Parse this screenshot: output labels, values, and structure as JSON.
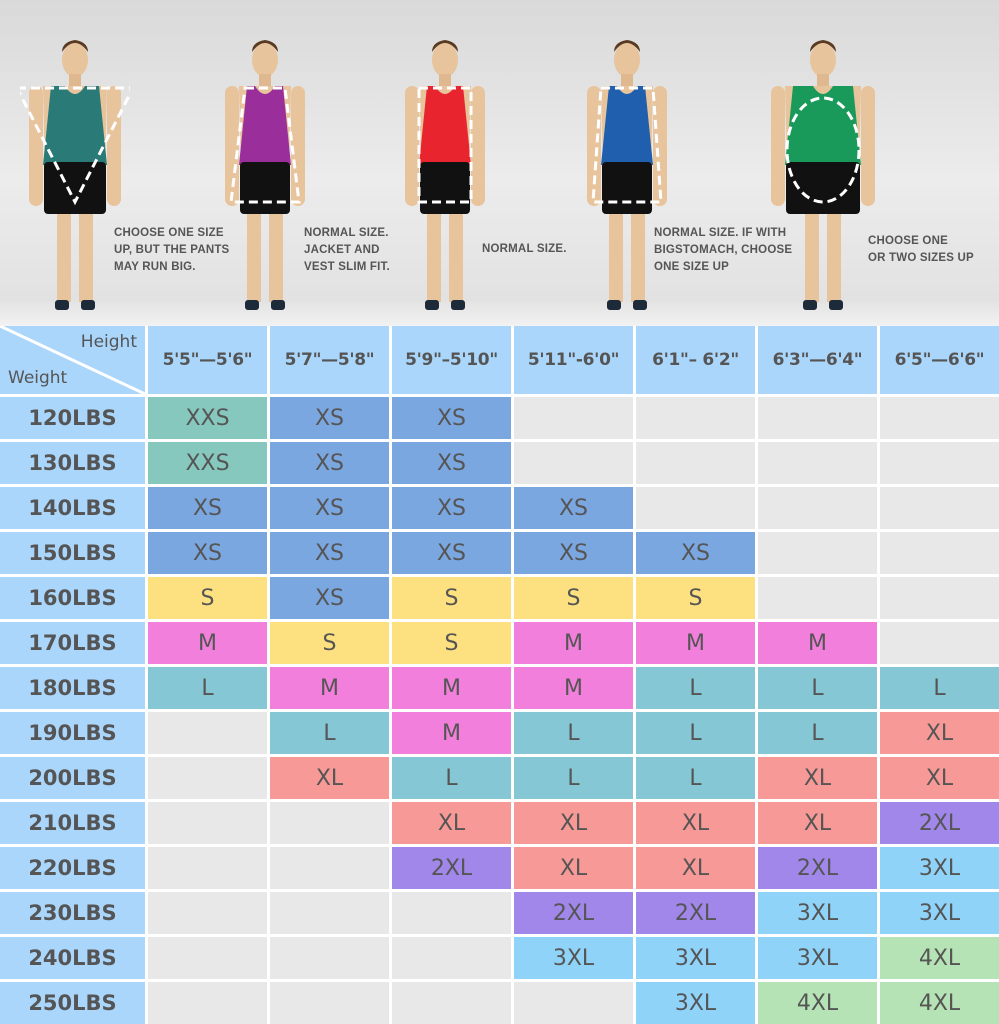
{
  "body_types": [
    {
      "shirt": "#2a7a78",
      "shape": "inverted-triangle",
      "note": [
        "CHOOSE ONE SIZE",
        "UP, BUT THE PANTS",
        "MAY RUN BIG."
      ]
    },
    {
      "shirt": "#9a2f9c",
      "shape": "triangle",
      "note": [
        "NORMAL SIZE.",
        "JACKET AND",
        "VEST SLIM FIT."
      ]
    },
    {
      "shirt": "#e8242e",
      "shape": "rectangle",
      "note": [
        "NORMAL SIZE."
      ]
    },
    {
      "shirt": "#1f5fae",
      "shape": "trapezoid",
      "note": [
        "NORMAL SIZE. IF WITH",
        "BIGSTOMACH, CHOOSE",
        "ONE SIZE UP"
      ]
    },
    {
      "shirt": "#1a9a5a",
      "shape": "oval",
      "note": [
        "CHOOSE ONE",
        "OR TWO SIZES UP"
      ]
    }
  ],
  "table": {
    "corner": {
      "height_label": "Height",
      "weight_label": "Weight"
    },
    "heights": [
      "5'5\"—5'6\"",
      "5'7\"—5'8\"",
      "5'9\"–5'10\"",
      "5'11\"-6'0\"",
      "6'1\"– 6'2\"",
      "6'3\"—6'4\"",
      "6'5\"—6'6\""
    ],
    "rows": [
      {
        "weight": "120LBS",
        "sizes": [
          "XXS",
          "XS",
          "XS",
          "",
          "",
          "",
          ""
        ]
      },
      {
        "weight": "130LBS",
        "sizes": [
          "XXS",
          "XS",
          "XS",
          "",
          "",
          "",
          ""
        ]
      },
      {
        "weight": "140LBS",
        "sizes": [
          "XS",
          "XS",
          "XS",
          "XS",
          "",
          "",
          ""
        ]
      },
      {
        "weight": "150LBS",
        "sizes": [
          "XS",
          "XS",
          "XS",
          "XS",
          "XS",
          "",
          ""
        ]
      },
      {
        "weight": "160LBS",
        "sizes": [
          "S",
          "XS",
          "S",
          "S",
          "S",
          "",
          ""
        ]
      },
      {
        "weight": "170LBS",
        "sizes": [
          "M",
          "S",
          "S",
          "M",
          "M",
          "M",
          ""
        ]
      },
      {
        "weight": "180LBS",
        "sizes": [
          "L",
          "M",
          "M",
          "M",
          "L",
          "L",
          "L"
        ]
      },
      {
        "weight": "190LBS",
        "sizes": [
          "",
          "L",
          "M",
          "L",
          "L",
          "L",
          "XL"
        ]
      },
      {
        "weight": "200LBS",
        "sizes": [
          "",
          "XL",
          "L",
          "L",
          "L",
          "XL",
          "XL"
        ]
      },
      {
        "weight": "210LBS",
        "sizes": [
          "",
          "",
          "XL",
          "XL",
          "XL",
          "XL",
          "2XL"
        ]
      },
      {
        "weight": "220LBS",
        "sizes": [
          "",
          "",
          "2XL",
          "XL",
          "XL",
          "2XL",
          "3XL"
        ]
      },
      {
        "weight": "230LBS",
        "sizes": [
          "",
          "",
          "",
          "2XL",
          "2XL",
          "3XL",
          "3XL"
        ]
      },
      {
        "weight": "240LBS",
        "sizes": [
          "",
          "",
          "",
          "3XL",
          "3XL",
          "3XL",
          "4XL"
        ]
      },
      {
        "weight": "250LBS",
        "sizes": [
          "",
          "",
          "",
          "",
          "3XL",
          "4XL",
          "4XL"
        ]
      }
    ],
    "size_colors": {
      "XXS": "#86c8bd",
      "XS": "#7ba7e0",
      "S": "#fde07f",
      "M": "#f27fdb",
      "L": "#86c7d6",
      "XL": "#f79a97",
      "2XL": "#a187ea",
      "3XL": "#8fd3f9",
      "4XL": "#b5e3b5",
      "": "#e8e8e8"
    },
    "header_color": "#aad6fb"
  }
}
